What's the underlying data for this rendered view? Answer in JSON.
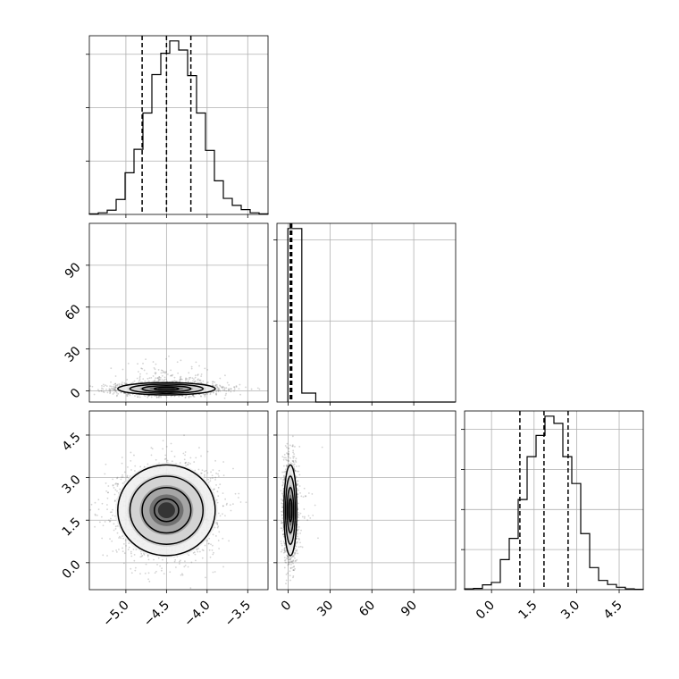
{
  "chart_data": {
    "type": "corner",
    "n_params": 3,
    "params": [
      {
        "range": [
          -5.45,
          -3.25
        ],
        "ticks": [
          -5.0,
          -4.5,
          -4.0,
          -3.5
        ],
        "tick_labels": [
          "−5.0",
          "−4.5",
          "−4.0",
          "−3.5"
        ]
      },
      {
        "range": [
          -8,
          120
        ],
        "ticks": [
          0,
          30,
          60,
          90
        ],
        "tick_labels": [
          "0",
          "30",
          "60",
          "90"
        ]
      },
      {
        "range": [
          -0.95,
          5.35
        ],
        "ticks": [
          0.0,
          1.5,
          3.0,
          4.5
        ],
        "tick_labels": [
          "0.0",
          "1.5",
          "3.0",
          "4.5"
        ]
      }
    ],
    "hist_1d": [
      {
        "bin_edges": [
          -5.45,
          -5.34,
          -5.23,
          -5.12,
          -5.01,
          -4.9,
          -4.79,
          -4.68,
          -4.57,
          -4.46,
          -4.35,
          -4.24,
          -4.13,
          -4.02,
          -3.91,
          -3.8,
          -3.69,
          -3.58,
          -3.47,
          -3.36,
          -3.25
        ],
        "counts": [
          1,
          3,
          8,
          28,
          78,
          122,
          190,
          262,
          302,
          325,
          308,
          260,
          190,
          120,
          63,
          30,
          17,
          9,
          3,
          1
        ],
        "quantiles": [
          -4.8,
          -4.5,
          -4.2
        ]
      },
      {
        "bin_edges": [
          -0.2,
          9.8,
          19.8,
          29.8,
          39.8,
          49.8,
          59.8,
          69.8,
          79.8,
          89.8,
          99.8,
          109.8,
          119.8
        ],
        "counts": [
          2140,
          110,
          0,
          0,
          0,
          0,
          0,
          0,
          0,
          0,
          0,
          0
        ],
        "quantiles": [
          1.5,
          2.0,
          2.6
        ]
      },
      {
        "bin_edges": [
          -0.95,
          -0.635,
          -0.32,
          -0.005,
          0.31,
          0.625,
          0.94,
          1.255,
          1.57,
          1.885,
          2.2,
          2.515,
          2.83,
          3.145,
          3.46,
          3.775,
          4.09,
          4.405,
          4.72,
          5.035,
          5.35
        ],
        "counts": [
          2,
          3,
          12,
          18,
          75,
          128,
          225,
          332,
          385,
          433,
          415,
          332,
          265,
          140,
          55,
          23,
          13,
          6,
          2,
          1
        ],
        "quantiles": [
          1.0,
          1.85,
          2.7
        ]
      }
    ],
    "hist_2d": [
      {
        "i": 1,
        "j": 0,
        "center": [
          -4.5,
          1.5
        ],
        "sigma": [
          0.3,
          2.2
        ],
        "rho": 0.0
      },
      {
        "i": 2,
        "j": 0,
        "center": [
          -4.5,
          1.85
        ],
        "sigma": [
          0.3,
          0.8
        ],
        "rho": 0.0
      },
      {
        "i": 2,
        "j": 1,
        "center": [
          1.6,
          1.85
        ],
        "sigma": [
          2.3,
          0.8
        ],
        "rho": 0.0
      }
    ],
    "contour_levels": [
      0.5,
      1.0,
      1.5,
      2.0
    ],
    "grid": true,
    "colors": {
      "points": "#666666",
      "hist": "#000000",
      "grid": "#b0b0b0"
    }
  }
}
